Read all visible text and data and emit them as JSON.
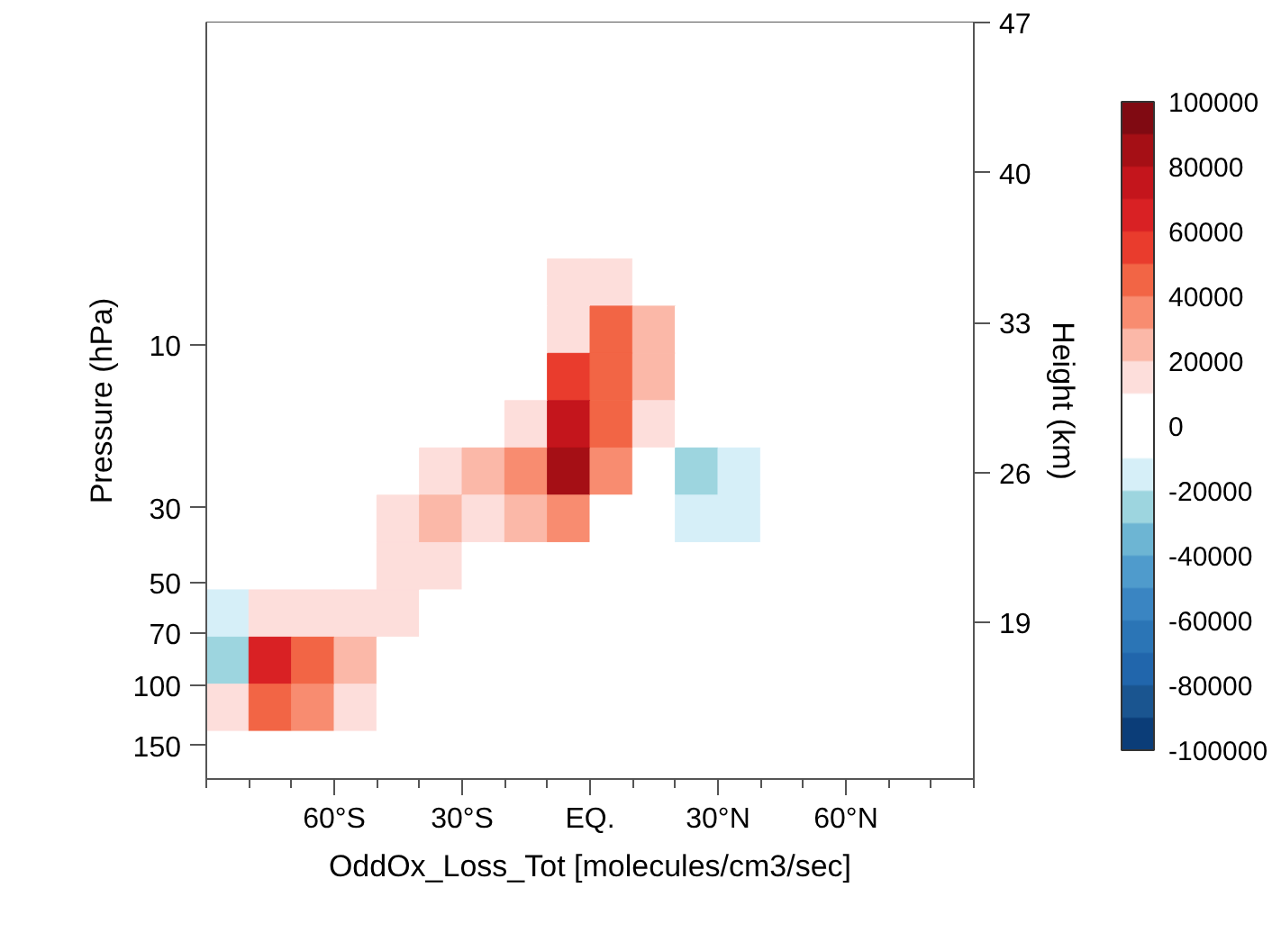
{
  "chart_data": {
    "type": "heatmap",
    "xlabel": "OddOx_Loss_Tot [molecules/cm3/sec]",
    "ylabel": "Pressure (hPa)",
    "y2label": "Height (km)",
    "log": "y",
    "x": [
      -85,
      -75,
      -65,
      -55,
      -45,
      -35,
      -25,
      -15,
      -5,
      5,
      15,
      25,
      35,
      45,
      55,
      65,
      75,
      85
    ],
    "y": [
      1.33,
      1.82,
      2.51,
      3.46,
      4.76,
      6.55,
      9.02,
      12.4,
      17.1,
      23.5,
      32.4,
      44.6,
      61.4,
      84.5,
      116,
      160
    ],
    "xlim": [
      -90,
      90
    ],
    "xticks": [
      {
        "value": -90,
        "label": null
      },
      {
        "value": -80,
        "label": null
      },
      {
        "value": -70,
        "label": null
      },
      {
        "value": -60,
        "label": "60°S"
      },
      {
        "value": -50,
        "label": null
      },
      {
        "value": -40,
        "label": null
      },
      {
        "value": -30,
        "label": "30°S"
      },
      {
        "value": -20,
        "label": null
      },
      {
        "value": -10,
        "label": null
      },
      {
        "value": 0,
        "label": "EQ."
      },
      {
        "value": 10,
        "label": null
      },
      {
        "value": 20,
        "label": null
      },
      {
        "value": 30,
        "label": "30°N"
      },
      {
        "value": 40,
        "label": null
      },
      {
        "value": 50,
        "label": null
      },
      {
        "value": 60,
        "label": "60°N"
      },
      {
        "value": 70,
        "label": null
      },
      {
        "value": 80,
        "label": null
      },
      {
        "value": 90,
        "label": null
      }
    ],
    "ylim": [
      188,
      1.13
    ],
    "yticks": [
      10,
      30,
      50,
      70,
      100,
      150
    ],
    "y2lim": [
      11.7,
      47
    ],
    "y2ticks": [
      19,
      26,
      33,
      40,
      47
    ],
    "clim": [
      -100000,
      100000
    ],
    "cticks": [
      -100000,
      -80000,
      -60000,
      -40000,
      -20000,
      0,
      20000,
      40000,
      60000,
      80000,
      100000
    ],
    "colors": [
      "#0b3d78",
      "#1a5590",
      "#2166ac",
      "#2b75b6",
      "#3a85c2",
      "#4f9bcc",
      "#6db5d3",
      "#9dd5df",
      "#d6eff8",
      "#ffffff",
      "#ffffff",
      "#fddedb",
      "#fbb8a8",
      "#f88c70",
      "#f26545",
      "#e93c2d",
      "#d92124",
      "#c4151c",
      "#a50f15",
      "#800a12"
    ],
    "cells": [
      [
        0,
        0,
        0,
        0,
        0,
        0,
        0,
        0,
        0,
        0,
        0,
        0,
        0,
        0,
        0,
        0,
        0,
        0
      ],
      [
        0,
        0,
        0,
        0,
        0,
        0,
        0,
        0,
        0,
        0,
        0,
        0,
        0,
        0,
        0,
        0,
        0,
        0
      ],
      [
        0,
        0,
        0,
        0,
        0,
        0,
        0,
        0,
        0,
        0,
        0,
        0,
        0,
        0,
        0,
        0,
        0,
        0
      ],
      [
        0,
        0,
        0,
        0,
        0,
        0,
        0,
        0,
        0,
        0,
        0,
        0,
        0,
        0,
        0,
        0,
        0,
        0
      ],
      [
        0,
        0,
        0,
        0,
        0,
        0,
        0,
        0,
        0,
        0,
        0,
        0,
        0,
        0,
        0,
        0,
        0,
        0
      ],
      [
        0,
        0,
        0,
        0,
        0,
        0,
        0,
        0,
        15000,
        15000,
        0,
        0,
        0,
        0,
        0,
        0,
        0,
        0
      ],
      [
        0,
        0,
        0,
        0,
        0,
        0,
        0,
        0,
        15000,
        45000,
        25000,
        0,
        0,
        0,
        0,
        0,
        0,
        0
      ],
      [
        0,
        0,
        0,
        0,
        0,
        0,
        0,
        0,
        55000,
        45000,
        25000,
        0,
        0,
        0,
        0,
        0,
        0,
        0
      ],
      [
        0,
        0,
        0,
        0,
        0,
        0,
        0,
        15000,
        75000,
        45000,
        15000,
        0,
        0,
        0,
        0,
        0,
        0,
        0
      ],
      [
        0,
        0,
        0,
        0,
        0,
        15000,
        25000,
        35000,
        85000,
        35000,
        0,
        -25000,
        -15000,
        0,
        0,
        0,
        0,
        0
      ],
      [
        0,
        0,
        0,
        0,
        15000,
        25000,
        15000,
        25000,
        35000,
        0,
        0,
        -15000,
        -15000,
        0,
        0,
        0,
        0,
        0
      ],
      [
        0,
        0,
        0,
        0,
        15000,
        15000,
        0,
        0,
        0,
        0,
        0,
        0,
        0,
        0,
        0,
        0,
        0,
        0
      ],
      [
        -15000,
        15000,
        15000,
        15000,
        15000,
        0,
        0,
        0,
        0,
        0,
        0,
        0,
        0,
        0,
        0,
        0,
        0,
        0
      ],
      [
        -25000,
        65000,
        45000,
        25000,
        0,
        0,
        0,
        0,
        0,
        0,
        0,
        0,
        0,
        0,
        0,
        0,
        0,
        0
      ],
      [
        15000,
        45000,
        35000,
        15000,
        0,
        0,
        0,
        0,
        0,
        0,
        0,
        0,
        0,
        0,
        0,
        0,
        0,
        0
      ],
      [
        0,
        0,
        0,
        0,
        0,
        0,
        0,
        0,
        0,
        0,
        0,
        0,
        0,
        0,
        0,
        0,
        0,
        0
      ]
    ]
  }
}
